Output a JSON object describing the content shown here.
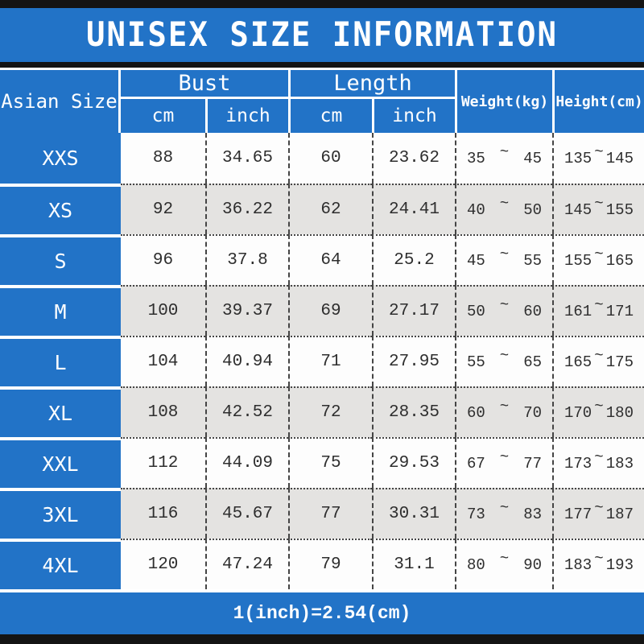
{
  "title": "UNISEX SIZE INFORMATION",
  "table": {
    "corner": "Asian Size",
    "bust_label": "Bust",
    "length_label": "Length",
    "cm_label": "cm",
    "inch_label": "inch",
    "weight_label": "Weight(kg)",
    "height_label": "Height(cm)",
    "tilde": "~",
    "rows": [
      {
        "size": "XXS",
        "bust_cm": "88",
        "bust_inch": "34.65",
        "length_cm": "60",
        "length_inch": "23.62",
        "weight_min": "35",
        "weight_max": "45",
        "height_min": "135",
        "height_max": "145"
      },
      {
        "size": "XS",
        "bust_cm": "92",
        "bust_inch": "36.22",
        "length_cm": "62",
        "length_inch": "24.41",
        "weight_min": "40",
        "weight_max": "50",
        "height_min": "145",
        "height_max": "155"
      },
      {
        "size": "S",
        "bust_cm": "96",
        "bust_inch": "37.8",
        "length_cm": "64",
        "length_inch": "25.2",
        "weight_min": "45",
        "weight_max": "55",
        "height_min": "155",
        "height_max": "165"
      },
      {
        "size": "M",
        "bust_cm": "100",
        "bust_inch": "39.37",
        "length_cm": "69",
        "length_inch": "27.17",
        "weight_min": "50",
        "weight_max": "60",
        "height_min": "161",
        "height_max": "171"
      },
      {
        "size": "L",
        "bust_cm": "104",
        "bust_inch": "40.94",
        "length_cm": "71",
        "length_inch": "27.95",
        "weight_min": "55",
        "weight_max": "65",
        "height_min": "165",
        "height_max": "175"
      },
      {
        "size": "XL",
        "bust_cm": "108",
        "bust_inch": "42.52",
        "length_cm": "72",
        "length_inch": "28.35",
        "weight_min": "60",
        "weight_max": "70",
        "height_min": "170",
        "height_max": "180"
      },
      {
        "size": "XXL",
        "bust_cm": "112",
        "bust_inch": "44.09",
        "length_cm": "75",
        "length_inch": "29.53",
        "weight_min": "67",
        "weight_max": "77",
        "height_min": "173",
        "height_max": "183"
      },
      {
        "size": "3XL",
        "bust_cm": "116",
        "bust_inch": "45.67",
        "length_cm": "77",
        "length_inch": "30.31",
        "weight_min": "73",
        "weight_max": "83",
        "height_min": "177",
        "height_max": "187"
      },
      {
        "size": "4XL",
        "bust_cm": "120",
        "bust_inch": "47.24",
        "length_cm": "79",
        "length_inch": "31.1",
        "weight_min": "80",
        "weight_max": "90",
        "height_min": "183",
        "height_max": "193"
      }
    ]
  },
  "footer": "1(inch)=2.54(cm)",
  "colors": {
    "blue": "#2273c7",
    "bar": "#141414",
    "row_white": "#fdfdfd",
    "row_alt": "#e4e3e1",
    "ink": "#2e2e2e"
  },
  "chart_data": {
    "type": "table",
    "title": "UNISEX SIZE INFORMATION",
    "columns": [
      "Asian Size",
      "Bust cm",
      "Bust inch",
      "Length cm",
      "Length inch",
      "Weight(kg)",
      "Height(cm)"
    ],
    "rows": [
      [
        "XXS",
        88,
        34.65,
        60,
        23.62,
        "35~45",
        "135~145"
      ],
      [
        "XS",
        92,
        36.22,
        62,
        24.41,
        "40~50",
        "145~155"
      ],
      [
        "S",
        96,
        37.8,
        64,
        25.2,
        "45~55",
        "155~165"
      ],
      [
        "M",
        100,
        39.37,
        69,
        27.17,
        "50~60",
        "161~171"
      ],
      [
        "L",
        104,
        40.94,
        71,
        27.95,
        "55~65",
        "165~175"
      ],
      [
        "XL",
        108,
        42.52,
        72,
        28.35,
        "60~70",
        "170~180"
      ],
      [
        "XXL",
        112,
        44.09,
        75,
        29.53,
        "67~77",
        "173~183"
      ],
      [
        "3XL",
        116,
        45.67,
        77,
        30.31,
        "73~83",
        "177~187"
      ],
      [
        "4XL",
        120,
        47.24,
        79,
        31.1,
        "80~90",
        "183~193"
      ]
    ],
    "note": "1(inch)=2.54(cm)"
  }
}
